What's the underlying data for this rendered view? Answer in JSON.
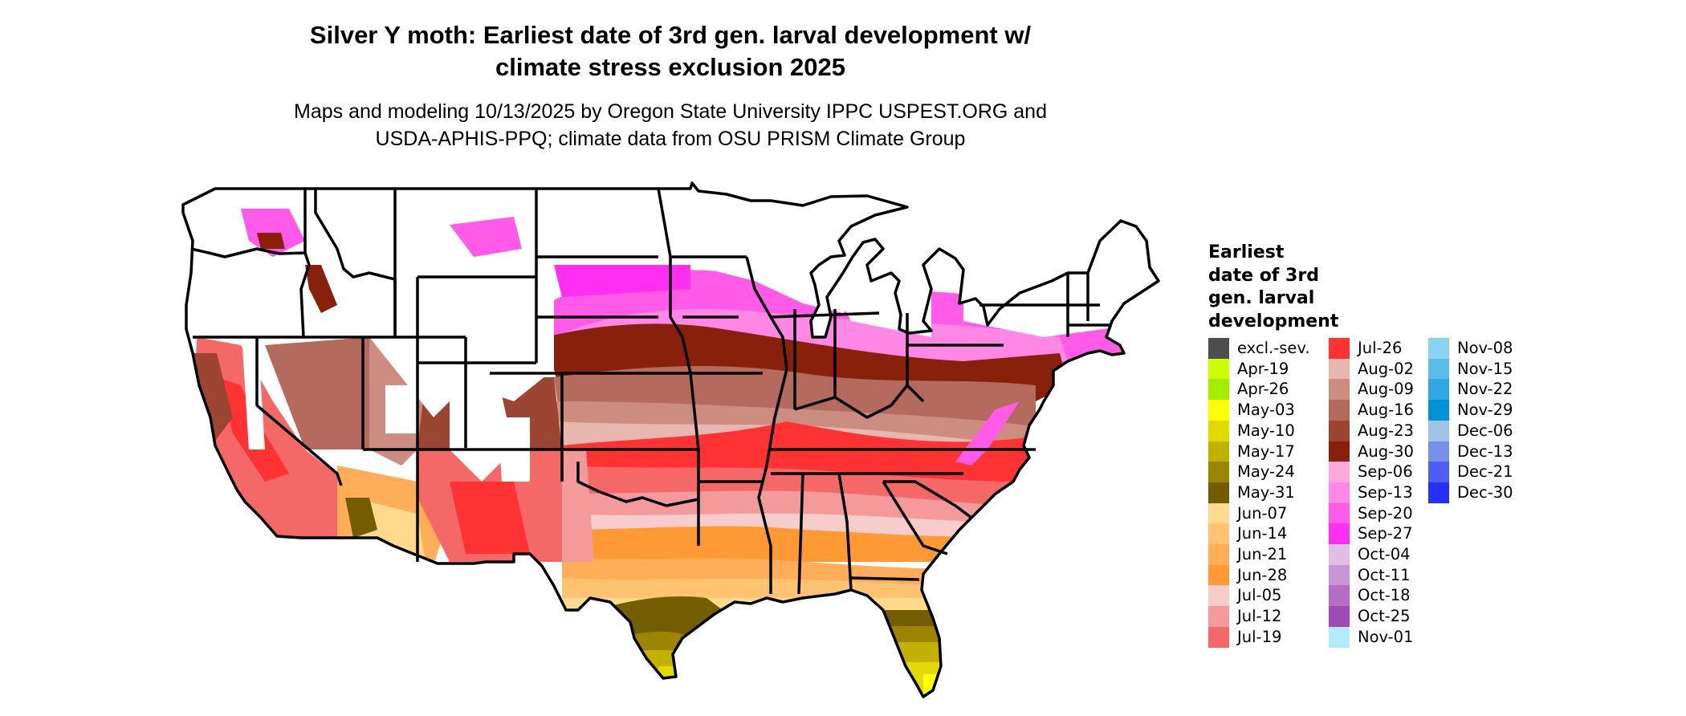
{
  "title": {
    "line1": "Silver Y moth: Earliest date of 3rd gen. larval development w/",
    "line2": "climate stress exclusion 2025"
  },
  "subtitle": {
    "line1": "Maps and modeling 10/13/2025 by Oregon State University IPPC USPEST.ORG and",
    "line2": "USDA-APHIS-PPQ; climate data from OSU PRISM Climate Group"
  },
  "legend": {
    "title_lines": [
      "Earliest",
      "date of 3rd",
      "gen. larval",
      "development"
    ],
    "columns": [
      [
        {
          "label": "excl.-sev.",
          "color": "#4d4d4d"
        },
        {
          "label": "Apr-19",
          "color": "#ccff00"
        },
        {
          "label": "Apr-26",
          "color": "#a3ee00"
        },
        {
          "label": "May-03",
          "color": "#ffff00"
        },
        {
          "label": "May-10",
          "color": "#e2da00"
        },
        {
          "label": "May-17",
          "color": "#c3b100"
        },
        {
          "label": "May-24",
          "color": "#9b8400"
        },
        {
          "label": "May-31",
          "color": "#745c00"
        },
        {
          "label": "Jun-07",
          "color": "#ffd98c"
        },
        {
          "label": "Jun-14",
          "color": "#ffc372"
        },
        {
          "label": "Jun-21",
          "color": "#ffad58"
        },
        {
          "label": "Jun-28",
          "color": "#ff9933"
        },
        {
          "label": "Jul-05",
          "color": "#f7cccc"
        },
        {
          "label": "Jul-12",
          "color": "#f59a9a"
        },
        {
          "label": "Jul-19",
          "color": "#f56868"
        }
      ],
      [
        {
          "label": "Jul-26",
          "color": "#ff3333"
        },
        {
          "label": "Aug-02",
          "color": "#e8b8b0"
        },
        {
          "label": "Aug-09",
          "color": "#cc8c80"
        },
        {
          "label": "Aug-16",
          "color": "#b46a5c"
        },
        {
          "label": "Aug-23",
          "color": "#9c4532"
        },
        {
          "label": "Aug-30",
          "color": "#88200c"
        },
        {
          "label": "Sep-06",
          "color": "#ffaadd"
        },
        {
          "label": "Sep-13",
          "color": "#ff88e6"
        },
        {
          "label": "Sep-20",
          "color": "#ff5ae8"
        },
        {
          "label": "Sep-27",
          "color": "#ff2ef0"
        },
        {
          "label": "Oct-04",
          "color": "#e0bee6"
        },
        {
          "label": "Oct-11",
          "color": "#c896d6"
        },
        {
          "label": "Oct-18",
          "color": "#b46ec6"
        },
        {
          "label": "Oct-25",
          "color": "#a04ab6"
        },
        {
          "label": "Nov-01",
          "color": "#b4eaff"
        }
      ],
      [
        {
          "label": "Nov-08",
          "color": "#88d4f2"
        },
        {
          "label": "Nov-15",
          "color": "#5abde8"
        },
        {
          "label": "Nov-22",
          "color": "#2ea8de"
        },
        {
          "label": "Nov-29",
          "color": "#0092d4"
        },
        {
          "label": "Dec-06",
          "color": "#a0c4e8"
        },
        {
          "label": "Dec-13",
          "color": "#7890ec"
        },
        {
          "label": "Dec-21",
          "color": "#4e5ef2"
        },
        {
          "label": "Dec-30",
          "color": "#2430fa"
        }
      ]
    ]
  },
  "map_colors": {
    "unsuitable": "#ffffff",
    "border": "#000000"
  }
}
